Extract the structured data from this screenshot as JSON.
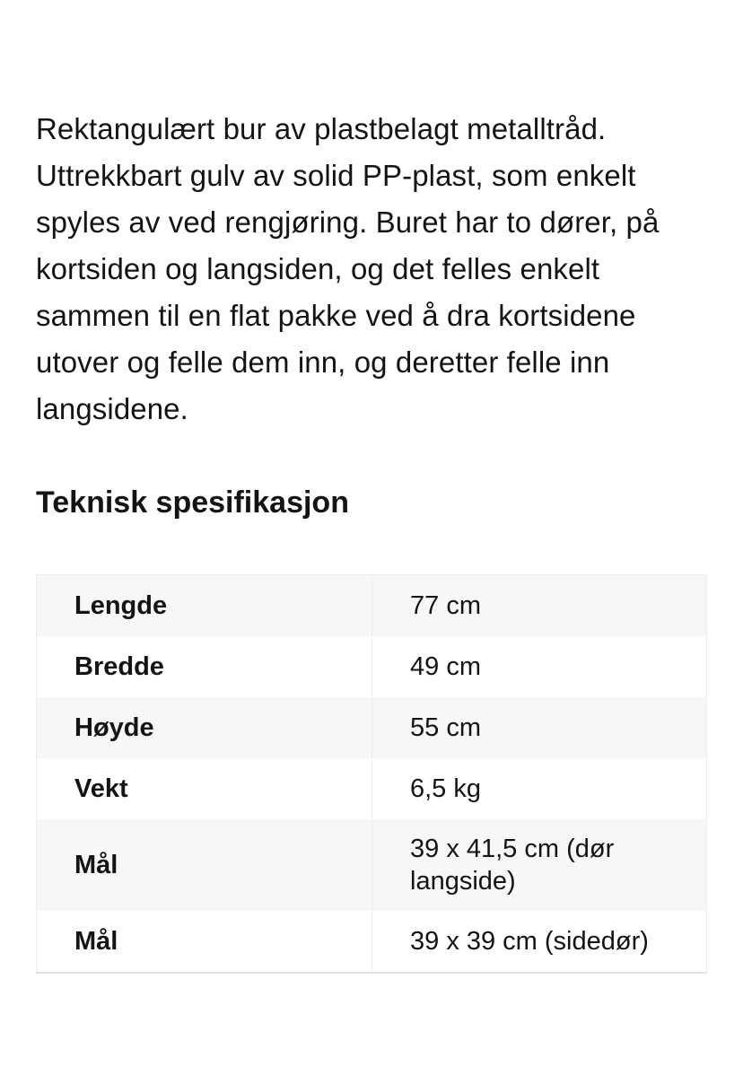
{
  "description": "Rektangulært bur av plastbelagt metalltråd. Uttrekkbart gulv av solid PP-plast, som enkelt spyles av ved rengjøring. Buret har to dører, på kortsiden og langsiden, og det felles enkelt sammen til en flat pakke ved å dra kortsidene utover og felle dem inn, og deretter felle inn langsidene.",
  "section": {
    "title": "Teknisk spesifikasjon"
  },
  "spec_table": {
    "rows": [
      {
        "label": "Lengde",
        "value": "77 cm"
      },
      {
        "label": "Bredde",
        "value": "49 cm"
      },
      {
        "label": "Høyde",
        "value": "55 cm"
      },
      {
        "label": "Vekt",
        "value": "6,5 kg"
      },
      {
        "label": "Mål",
        "value": "39 x 41,5 cm (dør langside)"
      },
      {
        "label": "Mål",
        "value": "39 x 39 cm (sidedør)"
      }
    ]
  },
  "colors": {
    "text": "#141414",
    "row_alt_bg": "#f7f7f7",
    "table_border": "#ececec",
    "table_bottom_border": "#e2e2e2"
  }
}
